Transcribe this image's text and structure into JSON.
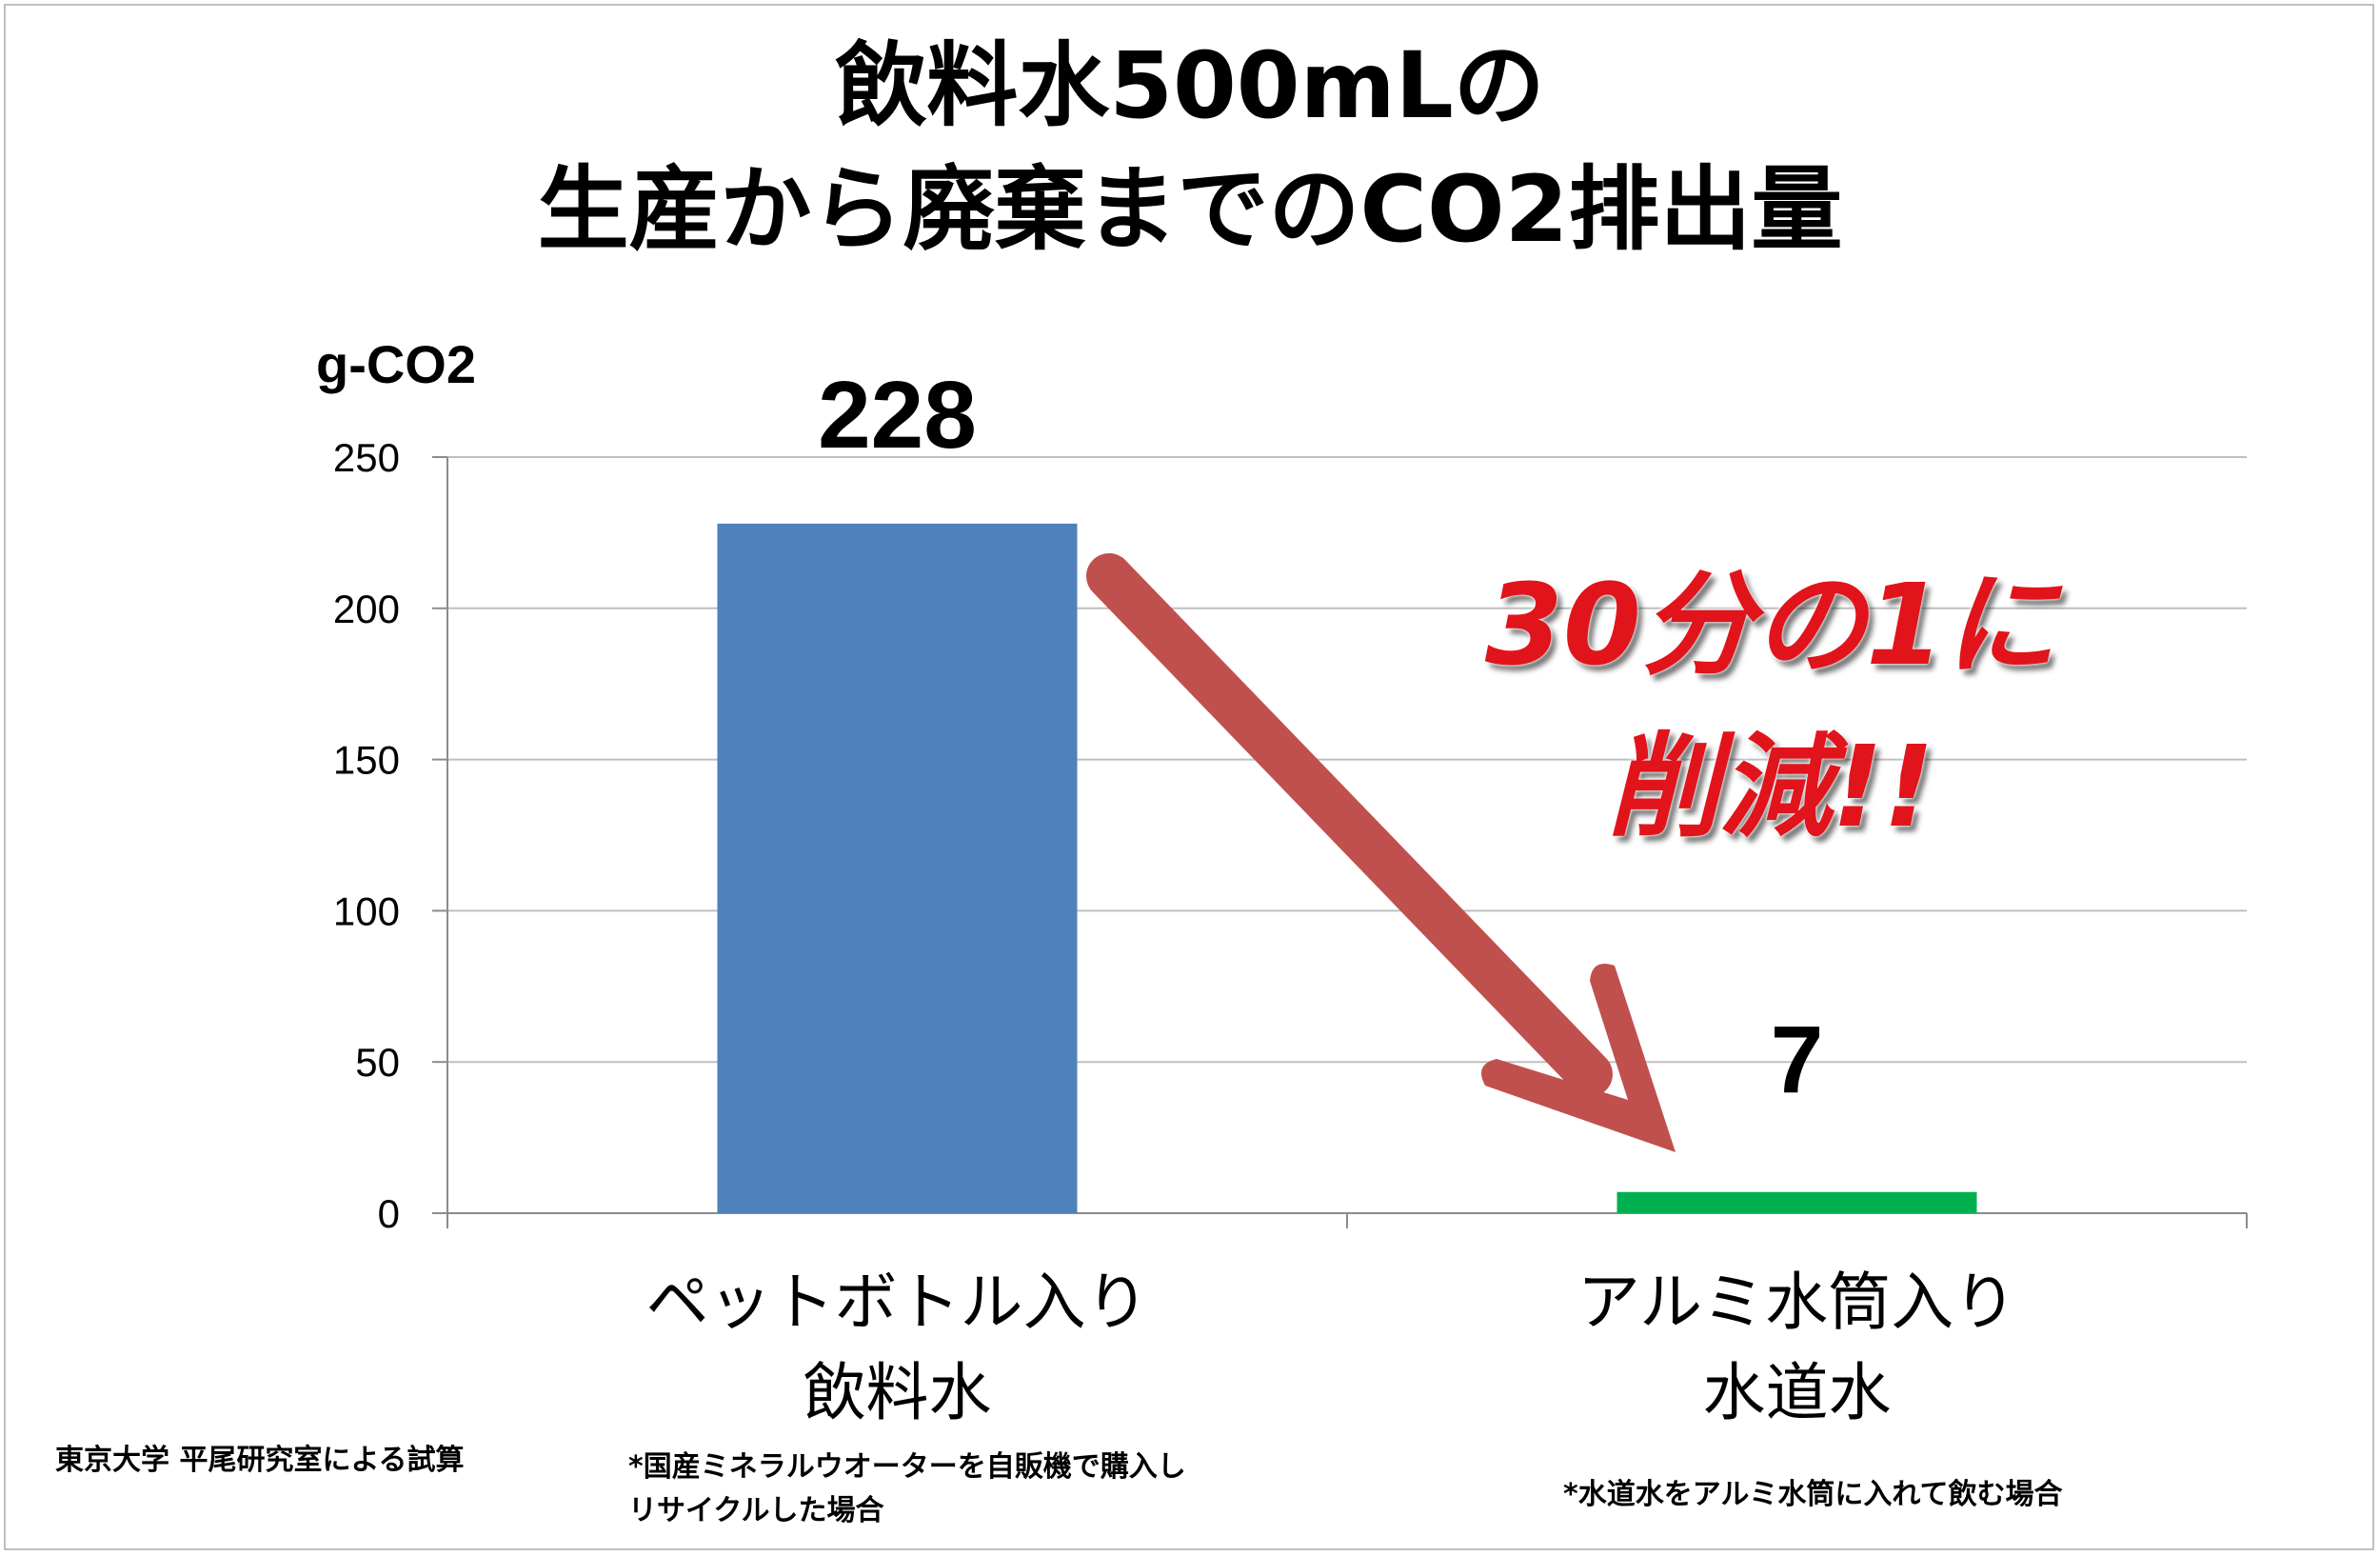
{
  "title": {
    "line1": "飲料水500mLの",
    "line2": "生産から廃棄までのCO2排出量"
  },
  "callout": {
    "line1": "30分の1に",
    "line2": "削減!!"
  },
  "notes": {
    "credit": "東京大学 平尾研究室による試算",
    "note1_line1": "*国産ミネラルウオーターを自販機で購入し",
    "note1_line2": "リサイクルした場合",
    "note2": "*水道水をアルミ水筒に入れて飲む場合"
  },
  "colors": {
    "bar_pet": "#4f81bd",
    "bar_tap": "#00b050",
    "arrow": "#c0504d",
    "callout_text": "#e1141b",
    "gridline": "#bfbfbf"
  },
  "chart_data": {
    "type": "bar",
    "ylabel": "g-CO2",
    "ylim": [
      0,
      250
    ],
    "yticks": [
      0,
      50,
      100,
      150,
      200,
      250
    ],
    "grid": true,
    "categories": [
      [
        "ペットボトル入り",
        "飲料水"
      ],
      [
        "アルミ水筒入り",
        "水道水"
      ]
    ],
    "values": [
      228,
      7
    ],
    "data_labels": [
      "228",
      "7"
    ]
  }
}
